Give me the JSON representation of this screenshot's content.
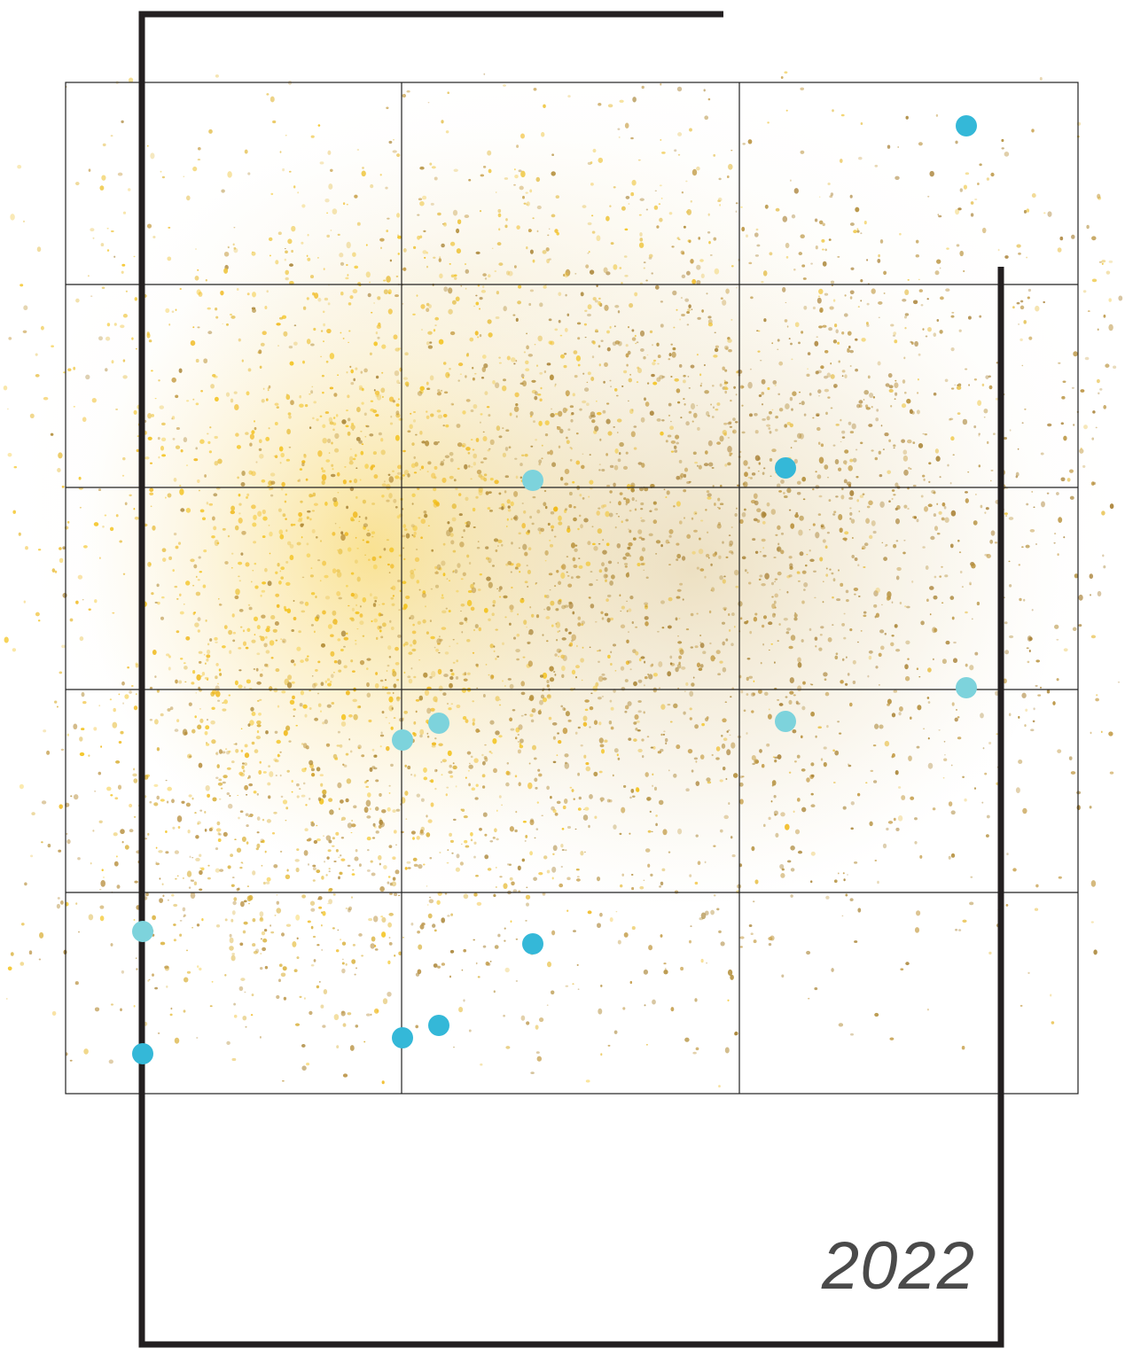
{
  "cover": {
    "year": "2022",
    "colors": {
      "frame": "#231f20",
      "grid": "#222222",
      "cloud_yellow": "#f5c313",
      "cloud_gold": "#b8902e",
      "dot_light": "#7dd3dc",
      "dot_dark": "#34b8d8"
    }
  }
}
